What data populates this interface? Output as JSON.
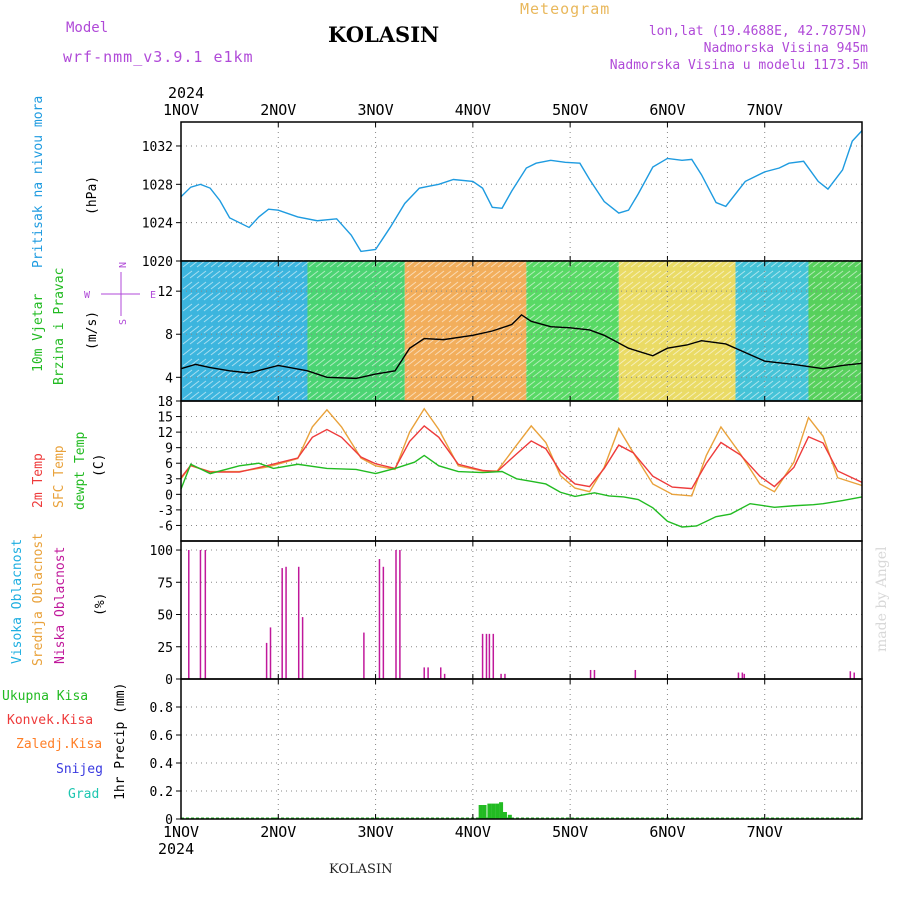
{
  "header": {
    "model_label": "Model",
    "model_name": "wrf-nmm_v3.9.1 e1km",
    "title": "KOLASIN",
    "meteogram_label": "Meteogram",
    "lonlat": "lon,lat (19.4688E, 42.7875N)",
    "elevation": "Nadmorska Visina 945m",
    "model_elevation": "Nadmorska Visina u modelu 1173.5m"
  },
  "footer": {
    "station": "KOLASIN",
    "watermark": "made by Angel"
  },
  "colors": {
    "pressure": "#1e9be0",
    "temp2m": "#ee3b3b",
    "sfc_temp": "#e9a23b",
    "dewpoint": "#22bb22",
    "high_cloud": "#1eaee0",
    "mid_cloud": "#e9a23b",
    "low_cloud": "#c0189b",
    "total_precip": "#22bb22",
    "conv_precip": "#ee3b3b",
    "frozen_precip": "#ff7f27",
    "snow": "#3a3ae0",
    "graupel": "#1ec6b0",
    "wind_label": "#22bb22",
    "wind_dir_glyph": "#b04ad8"
  },
  "chart_data": [
    {
      "type": "line",
      "panel": "pressure",
      "ylabel_left": "Pritisak na nivou mora",
      "ylabel_unit": "(hPa)",
      "ylim": [
        1020,
        1034.5
      ],
      "yticks": [
        "1020",
        "1024",
        "1028",
        "1032"
      ],
      "x_top_year": "2024",
      "x_top_ticks": [
        "1NOV",
        "2NOV",
        "3NOV",
        "4NOV",
        "5NOV",
        "6NOV",
        "7NOV"
      ],
      "grid": true,
      "series": [
        {
          "color": "pressure",
          "x": [
            0,
            0.1,
            0.2,
            0.3,
            0.4,
            0.5,
            0.7,
            0.8,
            0.9,
            1.0,
            1.2,
            1.4,
            1.6,
            1.75,
            1.85,
            2.0,
            2.15,
            2.3,
            2.45,
            2.55,
            2.65,
            2.8,
            3.0,
            3.1,
            3.2,
            3.3,
            3.4,
            3.55,
            3.65,
            3.8,
            3.95,
            4.1,
            4.2,
            4.35,
            4.5,
            4.6,
            4.7,
            4.85,
            5.0,
            5.15,
            5.25,
            5.35,
            5.5,
            5.6,
            5.8,
            6.0,
            6.15,
            6.25,
            6.4,
            6.55,
            6.65,
            6.8,
            6.9,
            7.0
          ],
          "values": [
            1026.7,
            1027.7,
            1028.0,
            1027.6,
            1026.3,
            1024.5,
            1023.5,
            1024.6,
            1025.4,
            1025.3,
            1024.6,
            1024.2,
            1024.4,
            1022.7,
            1021.0,
            1021.2,
            1023.5,
            1026.0,
            1027.6,
            1027.8,
            1028.0,
            1028.5,
            1028.3,
            1027.6,
            1025.6,
            1025.5,
            1027.3,
            1029.7,
            1030.2,
            1030.5,
            1030.3,
            1030.2,
            1028.5,
            1026.2,
            1025.0,
            1025.3,
            1027.0,
            1029.8,
            1030.7,
            1030.5,
            1030.6,
            1029.0,
            1026.1,
            1025.7,
            1028.3,
            1029.3,
            1029.7,
            1030.2,
            1030.4,
            1028.3,
            1027.5,
            1029.5,
            1032.5,
            1033.6
          ]
        }
      ]
    },
    {
      "type": "line",
      "panel": "wind",
      "ylabel_left_1": "10m Vjetar",
      "ylabel_left_2": "Brzina i Pravac",
      "ylabel_unit": "(m/s)",
      "direction_labels": [
        "N",
        "W",
        "E",
        "S"
      ],
      "ylim": [
        1.8,
        14.8
      ],
      "yticks": [
        "4",
        "8",
        "12"
      ],
      "grid": true,
      "series": [
        {
          "name": "brzina",
          "color": "#000000",
          "x": [
            0,
            0.15,
            0.3,
            0.5,
            0.7,
            1.0,
            1.3,
            1.5,
            1.8,
            2.0,
            2.2,
            2.35,
            2.5,
            2.7,
            3.0,
            3.2,
            3.4,
            3.5,
            3.6,
            3.8,
            4.0,
            4.2,
            4.35,
            4.6,
            4.85,
            5.0,
            5.2,
            5.35,
            5.6,
            6.0,
            6.3,
            6.6,
            6.8,
            7.0
          ],
          "values": [
            4.8,
            5.2,
            4.9,
            4.6,
            4.4,
            5.1,
            4.6,
            4.0,
            3.9,
            4.3,
            4.6,
            6.7,
            7.6,
            7.5,
            7.9,
            8.3,
            8.9,
            9.8,
            9.2,
            8.7,
            8.6,
            8.4,
            7.9,
            6.7,
            6.0,
            6.7,
            7.0,
            7.4,
            7.1,
            5.5,
            5.2,
            4.8,
            5.1,
            5.3
          ]
        }
      ]
    },
    {
      "type": "line",
      "panel": "temperature",
      "ylabel_1": "2m Temp",
      "ylabel_2": "SFC Temp",
      "ylabel_3": "dewpt Temp",
      "ylabel_unit": "(C)",
      "ylim": [
        -9,
        18
      ],
      "yticks": [
        "-6",
        "-3",
        "0",
        "3",
        "6",
        "9",
        "12",
        "15",
        "18"
      ],
      "grid": true,
      "series": [
        {
          "name": "SFC Temp",
          "color": "sfc_temp",
          "x": [
            0,
            0.1,
            0.3,
            0.6,
            0.9,
            1.2,
            1.35,
            1.5,
            1.65,
            1.85,
            2.0,
            2.2,
            2.35,
            2.5,
            2.65,
            2.85,
            3.1,
            3.25,
            3.45,
            3.6,
            3.75,
            3.9,
            4.05,
            4.2,
            4.35,
            4.5,
            4.65,
            4.85,
            5.05,
            5.25,
            5.4,
            5.55,
            5.75,
            5.95,
            6.1,
            6.3,
            6.45,
            6.6,
            6.75,
            7.0
          ],
          "values": [
            3.0,
            5.5,
            4.4,
            4.4,
            5.3,
            6.9,
            13.0,
            16.3,
            13.0,
            7.0,
            5.5,
            4.8,
            12.0,
            16.5,
            12.5,
            5.5,
            4.5,
            4.5,
            9.5,
            13.2,
            10.0,
            3.6,
            1.2,
            0.5,
            5.2,
            12.7,
            8.0,
            2.0,
            0.0,
            -0.3,
            7.5,
            13.0,
            7.8,
            2.0,
            0.5,
            6.2,
            14.8,
            11.2,
            3.2,
            1.7
          ]
        },
        {
          "name": "2m Temp",
          "color": "temp2m",
          "x": [
            0,
            0.1,
            0.3,
            0.6,
            0.9,
            1.2,
            1.35,
            1.5,
            1.65,
            1.85,
            2.0,
            2.2,
            2.35,
            2.5,
            2.65,
            2.85,
            3.1,
            3.25,
            3.45,
            3.6,
            3.75,
            3.9,
            4.05,
            4.2,
            4.35,
            4.5,
            4.65,
            4.85,
            5.05,
            5.25,
            5.4,
            5.55,
            5.75,
            5.95,
            6.1,
            6.3,
            6.45,
            6.6,
            6.75,
            7.0
          ],
          "values": [
            3.2,
            5.6,
            4.3,
            4.3,
            5.6,
            7.0,
            11.0,
            12.5,
            11.0,
            7.2,
            5.9,
            5.0,
            10.2,
            13.2,
            11.0,
            5.8,
            4.6,
            4.4,
            7.8,
            10.3,
            8.8,
            4.4,
            2.0,
            1.5,
            5.0,
            9.5,
            8.0,
            3.5,
            1.4,
            1.1,
            6.0,
            10.0,
            7.6,
            3.5,
            1.5,
            5.2,
            11.1,
            9.9,
            4.5,
            2.3
          ]
        },
        {
          "name": "dewpt Temp",
          "color": "dewpoint",
          "x": [
            0,
            0.1,
            0.3,
            0.6,
            0.8,
            0.95,
            1.2,
            1.5,
            1.8,
            2.0,
            2.2,
            2.4,
            2.5,
            2.65,
            2.85,
            3.1,
            3.3,
            3.45,
            3.6,
            3.75,
            3.9,
            4.05,
            4.25,
            4.4,
            4.55,
            4.7,
            4.85,
            5.0,
            5.15,
            5.3,
            5.5,
            5.65,
            5.85,
            6.1,
            6.3,
            6.5,
            6.6,
            6.8,
            7.0
          ],
          "values": [
            1.0,
            5.8,
            4.0,
            5.5,
            6.0,
            5.0,
            5.8,
            5.0,
            4.8,
            4.0,
            5.0,
            6.2,
            7.5,
            5.5,
            4.4,
            4.2,
            4.4,
            3.0,
            2.5,
            2.0,
            0.4,
            -0.4,
            0.3,
            -0.3,
            -0.5,
            -1.0,
            -2.6,
            -5.2,
            -6.3,
            -6.1,
            -4.3,
            -3.8,
            -1.8,
            -2.5,
            -2.2,
            -2.0,
            -1.8,
            -1.2,
            -0.5
          ]
        }
      ]
    },
    {
      "type": "bar",
      "panel": "cloud",
      "ylabel_1": "Visoka Oblacnost",
      "ylabel_2": "Srednja Oblacnost",
      "ylabel_3": "Niska Oblacnost",
      "ylabel_unit": "(%)",
      "ylim": [
        0,
        107
      ],
      "yticks": [
        "0",
        "25",
        "50",
        "75",
        "100"
      ],
      "grid": true,
      "series": [
        {
          "name": "Niska Oblacnost",
          "color": "low_cloud",
          "x": [
            0.08,
            0.2,
            0.25,
            0.88,
            0.92,
            1.04,
            1.08,
            1.21,
            1.25,
            1.88,
            2.04,
            2.08,
            2.21,
            2.25,
            2.5,
            2.54,
            2.67,
            2.71,
            3.1,
            3.14,
            3.17,
            3.21,
            3.29,
            3.33,
            4.21,
            4.25,
            4.67,
            5.73,
            5.77,
            5.79,
            6.88,
            6.92
          ],
          "values": [
            100,
            100,
            100,
            28,
            40,
            86,
            87,
            87,
            48,
            36,
            93,
            87,
            100,
            100,
            9,
            9,
            9,
            4,
            35,
            35,
            35,
            35,
            4,
            4,
            7,
            7,
            7,
            5,
            5,
            4,
            6,
            5
          ]
        }
      ]
    },
    {
      "type": "bar",
      "panel": "precipitation",
      "legend": [
        "Ukupna Kisa",
        "Konvek.Kisa",
        "Zaledj.Kisa",
        "Snijeg",
        "Grad"
      ],
      "ylabel": "1hr Precip (mm)",
      "ylim": [
        0,
        1.0
      ],
      "yticks": [
        "0",
        "0.2",
        "0.4",
        "0.6",
        "0.8"
      ],
      "x_bottom_ticks": [
        "1NOV",
        "2NOV",
        "3NOV",
        "4NOV",
        "5NOV",
        "6NOV",
        "7NOV"
      ],
      "x_bottom_year": "2024",
      "grid": true,
      "series": [
        {
          "name": "Ukupna Kisa",
          "color": "total_precip",
          "x": [
            0.96,
            3.08,
            3.12,
            3.17,
            3.21,
            3.25,
            3.29,
            3.33,
            3.38
          ],
          "values": [
            0.01,
            0.1,
            0.1,
            0.11,
            0.11,
            0.11,
            0.12,
            0.05,
            0.03
          ]
        }
      ]
    }
  ]
}
